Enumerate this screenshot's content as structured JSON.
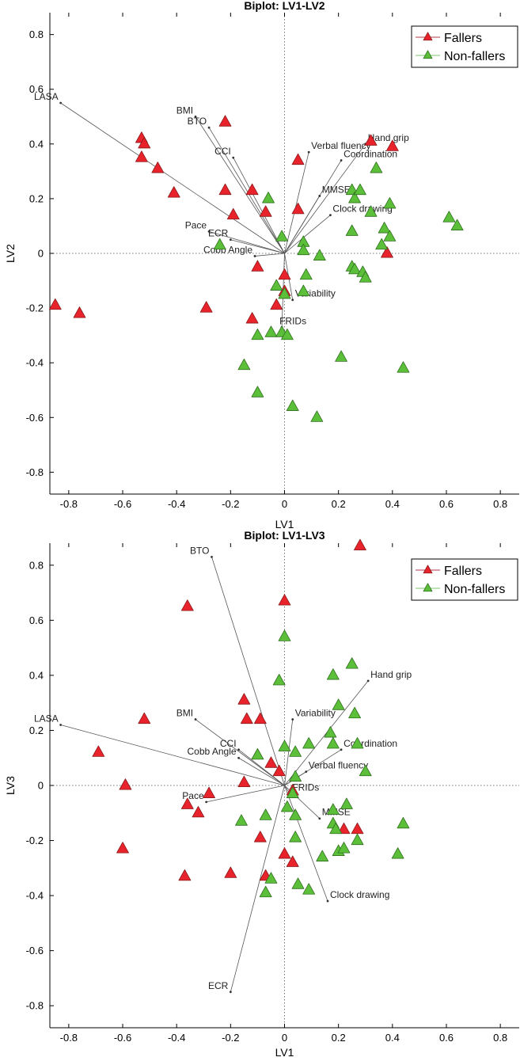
{
  "colors": {
    "fallers": "#e8232b",
    "fallers_edge": "#8a1a1a",
    "nonfallers": "#5cbf3a",
    "nonfallers_edge": "#2f6f1e",
    "vector": "#555555",
    "axis": "#000000",
    "zero_line": "#777777",
    "legend_line_fallers": "#b5384a",
    "legend_line_nonfallers": "#7cc36b"
  },
  "chart_data": [
    {
      "type": "scatter",
      "title": "Biplot: LV1-LV2",
      "xlabel": "LV1",
      "ylabel": "LV2",
      "xlim": [
        -0.87,
        0.87
      ],
      "ylim": [
        -0.88,
        0.88
      ],
      "xticks": [
        -0.8,
        -0.6,
        -0.4,
        -0.2,
        0,
        0.2,
        0.4,
        0.6,
        0.8
      ],
      "yticks": [
        -0.8,
        -0.6,
        -0.4,
        -0.2,
        0,
        0.2,
        0.4,
        0.6,
        0.8
      ],
      "xtick_labels": [
        "-0.8",
        "-0.6",
        "-0.4",
        "-0.2",
        "0",
        "0.2",
        "0.4",
        "0.6",
        "0.8"
      ],
      "ytick_labels": [
        "-0.8",
        "-0.6",
        "-0.4",
        "-0.2",
        "0",
        "0.2",
        "0.4",
        "0.6",
        "0.8"
      ],
      "grid": false,
      "legend_position": "top-right",
      "series": [
        {
          "name": "Fallers",
          "points": [
            [
              -0.85,
              -0.19
            ],
            [
              -0.76,
              -0.22
            ],
            [
              -0.53,
              0.42
            ],
            [
              -0.52,
              0.4
            ],
            [
              -0.53,
              0.35
            ],
            [
              -0.47,
              0.31
            ],
            [
              -0.41,
              0.22
            ],
            [
              -0.29,
              -0.2
            ],
            [
              -0.22,
              0.48
            ],
            [
              -0.22,
              0.23
            ],
            [
              -0.19,
              0.14
            ],
            [
              -0.12,
              0.23
            ],
            [
              -0.07,
              0.15
            ],
            [
              -0.12,
              -0.24
            ],
            [
              -0.1,
              -0.05
            ],
            [
              -0.03,
              -0.19
            ],
            [
              0.0,
              -0.14
            ],
            [
              0.0,
              -0.08
            ],
            [
              0.05,
              0.34
            ],
            [
              0.05,
              0.16
            ],
            [
              0.32,
              0.41
            ],
            [
              0.4,
              0.39
            ],
            [
              0.38,
              0.0
            ]
          ]
        },
        {
          "name": "Non-fallers",
          "points": [
            [
              -0.24,
              0.03
            ],
            [
              -0.06,
              0.2
            ],
            [
              -0.01,
              0.06
            ],
            [
              -0.03,
              -0.12
            ],
            [
              0.0,
              -0.15
            ],
            [
              0.07,
              -0.14
            ],
            [
              0.08,
              -0.08
            ],
            [
              0.07,
              0.04
            ],
            [
              0.07,
              0.01
            ],
            [
              0.13,
              -0.01
            ],
            [
              -0.1,
              -0.3
            ],
            [
              -0.05,
              -0.29
            ],
            [
              -0.01,
              -0.29
            ],
            [
              0.01,
              -0.3
            ],
            [
              -0.15,
              -0.41
            ],
            [
              -0.1,
              -0.51
            ],
            [
              0.03,
              -0.56
            ],
            [
              0.12,
              -0.6
            ],
            [
              0.21,
              -0.38
            ],
            [
              0.25,
              0.23
            ],
            [
              0.25,
              0.08
            ],
            [
              0.25,
              -0.05
            ],
            [
              0.26,
              -0.06
            ],
            [
              0.26,
              0.2
            ],
            [
              0.28,
              0.23
            ],
            [
              0.29,
              -0.07
            ],
            [
              0.3,
              -0.09
            ],
            [
              0.32,
              0.15
            ],
            [
              0.34,
              0.31
            ],
            [
              0.36,
              0.03
            ],
            [
              0.37,
              0.09
            ],
            [
              0.39,
              0.06
            ],
            [
              0.39,
              0.18
            ],
            [
              0.44,
              -0.42
            ],
            [
              0.61,
              0.13
            ],
            [
              0.64,
              0.1
            ]
          ]
        }
      ],
      "vectors": [
        {
          "label": "LASA",
          "x": -0.83,
          "y": 0.55
        },
        {
          "label": "BMI",
          "x": -0.33,
          "y": 0.5
        },
        {
          "label": "BTO",
          "x": -0.28,
          "y": 0.46
        },
        {
          "label": "CCI",
          "x": -0.19,
          "y": 0.35
        },
        {
          "label": "Verbal fluency",
          "x": 0.09,
          "y": 0.37
        },
        {
          "label": "Hand grip",
          "x": 0.3,
          "y": 0.4
        },
        {
          "label": "Coordination",
          "x": 0.21,
          "y": 0.34
        },
        {
          "label": "MMSE",
          "x": 0.13,
          "y": 0.21
        },
        {
          "label": "Clock drawing",
          "x": 0.17,
          "y": 0.14
        },
        {
          "label": "Pace",
          "x": -0.28,
          "y": 0.08
        },
        {
          "label": "ECR",
          "x": -0.2,
          "y": 0.05
        },
        {
          "label": "Cobb Angle",
          "x": -0.11,
          "y": -0.01
        },
        {
          "label": "Variability",
          "x": 0.03,
          "y": -0.17
        },
        {
          "label": "FRIDs",
          "x": -0.01,
          "y": -0.27
        }
      ]
    },
    {
      "type": "scatter",
      "title": "Biplot: LV1-LV3",
      "xlabel": "LV1",
      "ylabel": "LV3",
      "xlim": [
        -0.87,
        0.87
      ],
      "ylim": [
        -0.88,
        0.88
      ],
      "xticks": [
        -0.8,
        -0.6,
        -0.4,
        -0.2,
        0,
        0.2,
        0.4,
        0.6,
        0.8
      ],
      "yticks": [
        -0.8,
        -0.6,
        -0.4,
        -0.2,
        0,
        0.2,
        0.4,
        0.6,
        0.8
      ],
      "xtick_labels": [
        "-0.8",
        "-0.6",
        "-0.4",
        "-0.2",
        "0",
        "0.2",
        "0.4",
        "0.6",
        "0.8"
      ],
      "ytick_labels": [
        "-0.8",
        "-0.6",
        "-0.4",
        "-0.2",
        "0",
        "0.2",
        "0.4",
        "0.6",
        "0.8"
      ],
      "grid": false,
      "legend_position": "top-right",
      "series": [
        {
          "name": "Fallers",
          "points": [
            [
              0.28,
              0.87
            ],
            [
              0.0,
              0.67
            ],
            [
              -0.36,
              0.65
            ],
            [
              -0.15,
              0.31
            ],
            [
              -0.14,
              0.24
            ],
            [
              -0.09,
              0.24
            ],
            [
              -0.52,
              0.24
            ],
            [
              -0.69,
              0.12
            ],
            [
              -0.59,
              0.0
            ],
            [
              -0.05,
              0.08
            ],
            [
              -0.02,
              0.05
            ],
            [
              -0.15,
              0.01
            ],
            [
              -0.28,
              -0.03
            ],
            [
              -0.36,
              -0.07
            ],
            [
              -0.32,
              -0.1
            ],
            [
              0.03,
              -0.02
            ],
            [
              -0.09,
              -0.19
            ],
            [
              0.0,
              -0.25
            ],
            [
              0.03,
              -0.28
            ],
            [
              -0.6,
              -0.23
            ],
            [
              -0.37,
              -0.33
            ],
            [
              -0.2,
              -0.32
            ],
            [
              -0.07,
              -0.33
            ],
            [
              0.22,
              -0.16
            ],
            [
              0.27,
              -0.16
            ]
          ]
        },
        {
          "name": "Non-fallers",
          "points": [
            [
              0.0,
              0.54
            ],
            [
              -0.02,
              0.38
            ],
            [
              0.25,
              0.44
            ],
            [
              0.18,
              0.4
            ],
            [
              0.2,
              0.29
            ],
            [
              0.26,
              0.26
            ],
            [
              0.17,
              0.19
            ],
            [
              0.18,
              0.15
            ],
            [
              0.27,
              0.15
            ],
            [
              0.3,
              0.05
            ],
            [
              0.09,
              0.15
            ],
            [
              0.04,
              0.12
            ],
            [
              -0.1,
              0.11
            ],
            [
              0.0,
              0.14
            ],
            [
              0.04,
              0.03
            ],
            [
              0.03,
              -0.03
            ],
            [
              -0.07,
              -0.11
            ],
            [
              0.01,
              -0.08
            ],
            [
              0.04,
              -0.11
            ],
            [
              -0.16,
              -0.13
            ],
            [
              0.04,
              -0.19
            ],
            [
              0.18,
              -0.09
            ],
            [
              0.23,
              -0.07
            ],
            [
              0.18,
              -0.14
            ],
            [
              0.19,
              -0.16
            ],
            [
              0.2,
              -0.24
            ],
            [
              0.22,
              -0.23
            ],
            [
              0.27,
              -0.2
            ],
            [
              0.14,
              -0.26
            ],
            [
              0.44,
              -0.14
            ],
            [
              0.42,
              -0.25
            ],
            [
              -0.05,
              -0.34
            ],
            [
              -0.07,
              -0.39
            ],
            [
              0.05,
              -0.36
            ],
            [
              0.09,
              -0.38
            ]
          ]
        }
      ],
      "vectors": [
        {
          "label": "BTO",
          "x": -0.27,
          "y": 0.83
        },
        {
          "label": "Hand grip",
          "x": 0.31,
          "y": 0.38
        },
        {
          "label": "LASA",
          "x": -0.83,
          "y": 0.22
        },
        {
          "label": "BMI",
          "x": -0.33,
          "y": 0.24
        },
        {
          "label": "Variability",
          "x": 0.03,
          "y": 0.24
        },
        {
          "label": "CCI",
          "x": -0.17,
          "y": 0.13
        },
        {
          "label": "Cobb Angle",
          "x": -0.17,
          "y": 0.1
        },
        {
          "label": "Coordination",
          "x": 0.21,
          "y": 0.13
        },
        {
          "label": "Verbal fluency",
          "x": 0.08,
          "y": 0.05
        },
        {
          "label": "FRIDs",
          "x": 0.02,
          "y": -0.03
        },
        {
          "label": "Pace",
          "x": -0.29,
          "y": -0.06
        },
        {
          "label": "MMSE",
          "x": 0.13,
          "y": -0.12
        },
        {
          "label": "Clock drawing",
          "x": 0.16,
          "y": -0.42
        },
        {
          "label": "ECR",
          "x": -0.2,
          "y": -0.75
        }
      ]
    }
  ]
}
